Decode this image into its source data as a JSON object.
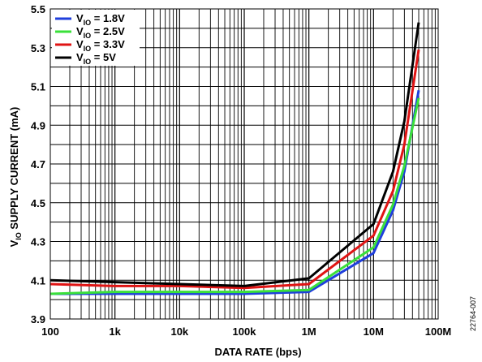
{
  "chart_data": {
    "type": "line",
    "xscale": "log",
    "xlim": [
      100,
      100000000
    ],
    "ylim": [
      3.9,
      5.5
    ],
    "xlabel": "DATA RATE (bps)",
    "ylabel_main": "V",
    "ylabel_sub": "IO",
    "ylabel_rest": " SUPPLY CURRENT (mA)",
    "x_ticks": [
      {
        "value": 100,
        "label": "100"
      },
      {
        "value": 1000,
        "label": "1k"
      },
      {
        "value": 10000,
        "label": "10k"
      },
      {
        "value": 100000,
        "label": "100k"
      },
      {
        "value": 1000000,
        "label": "1M"
      },
      {
        "value": 10000000,
        "label": "10M"
      },
      {
        "value": 100000000,
        "label": "100M"
      }
    ],
    "y_ticks": [
      {
        "value": 3.9,
        "label": "3.9"
      },
      {
        "value": 4.1,
        "label": "4.1"
      },
      {
        "value": 4.3,
        "label": "4.3"
      },
      {
        "value": 4.5,
        "label": "4.5"
      },
      {
        "value": 4.7,
        "label": "4.7"
      },
      {
        "value": 4.9,
        "label": "4.9"
      },
      {
        "value": 5.1,
        "label": "5.1"
      },
      {
        "value": 5.3,
        "label": "5.3"
      },
      {
        "value": 5.5,
        "label": "5.5"
      }
    ],
    "grid": true,
    "legend_position": "top-left",
    "series": [
      {
        "key": "vio-1-8v",
        "name_main": "V",
        "name_sub": "IO",
        "name_rest": " = 1.8V",
        "color": "#1f3fdc",
        "x": [
          100,
          1000,
          10000,
          100000,
          1000000,
          10000000,
          20000000,
          30000000,
          50000000
        ],
        "y": [
          4.03,
          4.03,
          4.03,
          4.03,
          4.04,
          4.24,
          4.46,
          4.66,
          5.08
        ]
      },
      {
        "key": "vio-2-5v",
        "name_main": "V",
        "name_sub": "IO",
        "name_rest": " = 2.5V",
        "color": "#3ae03a",
        "x": [
          100,
          1000,
          10000,
          100000,
          1000000,
          10000000,
          20000000,
          30000000,
          50000000
        ],
        "y": [
          4.03,
          4.04,
          4.04,
          4.04,
          4.05,
          4.27,
          4.49,
          4.69,
          5.04
        ]
      },
      {
        "key": "vio-3-3v",
        "name_main": "V",
        "name_sub": "IO",
        "name_rest": " = 3.3V",
        "color": "#e01414",
        "x": [
          100,
          1000,
          10000,
          100000,
          1000000,
          10000000,
          20000000,
          30000000,
          50000000
        ],
        "y": [
          4.08,
          4.07,
          4.07,
          4.06,
          4.08,
          4.33,
          4.56,
          4.8,
          5.29
        ]
      },
      {
        "key": "vio-5v",
        "name_main": "V",
        "name_sub": "IO",
        "name_rest": " = 5V",
        "color": "#000000",
        "x": [
          100,
          1000,
          10000,
          100000,
          1000000,
          10000000,
          20000000,
          30000000,
          50000000
        ],
        "y": [
          4.1,
          4.09,
          4.08,
          4.07,
          4.11,
          4.39,
          4.66,
          4.92,
          5.43
        ]
      }
    ]
  },
  "figure_id": "22764-007"
}
